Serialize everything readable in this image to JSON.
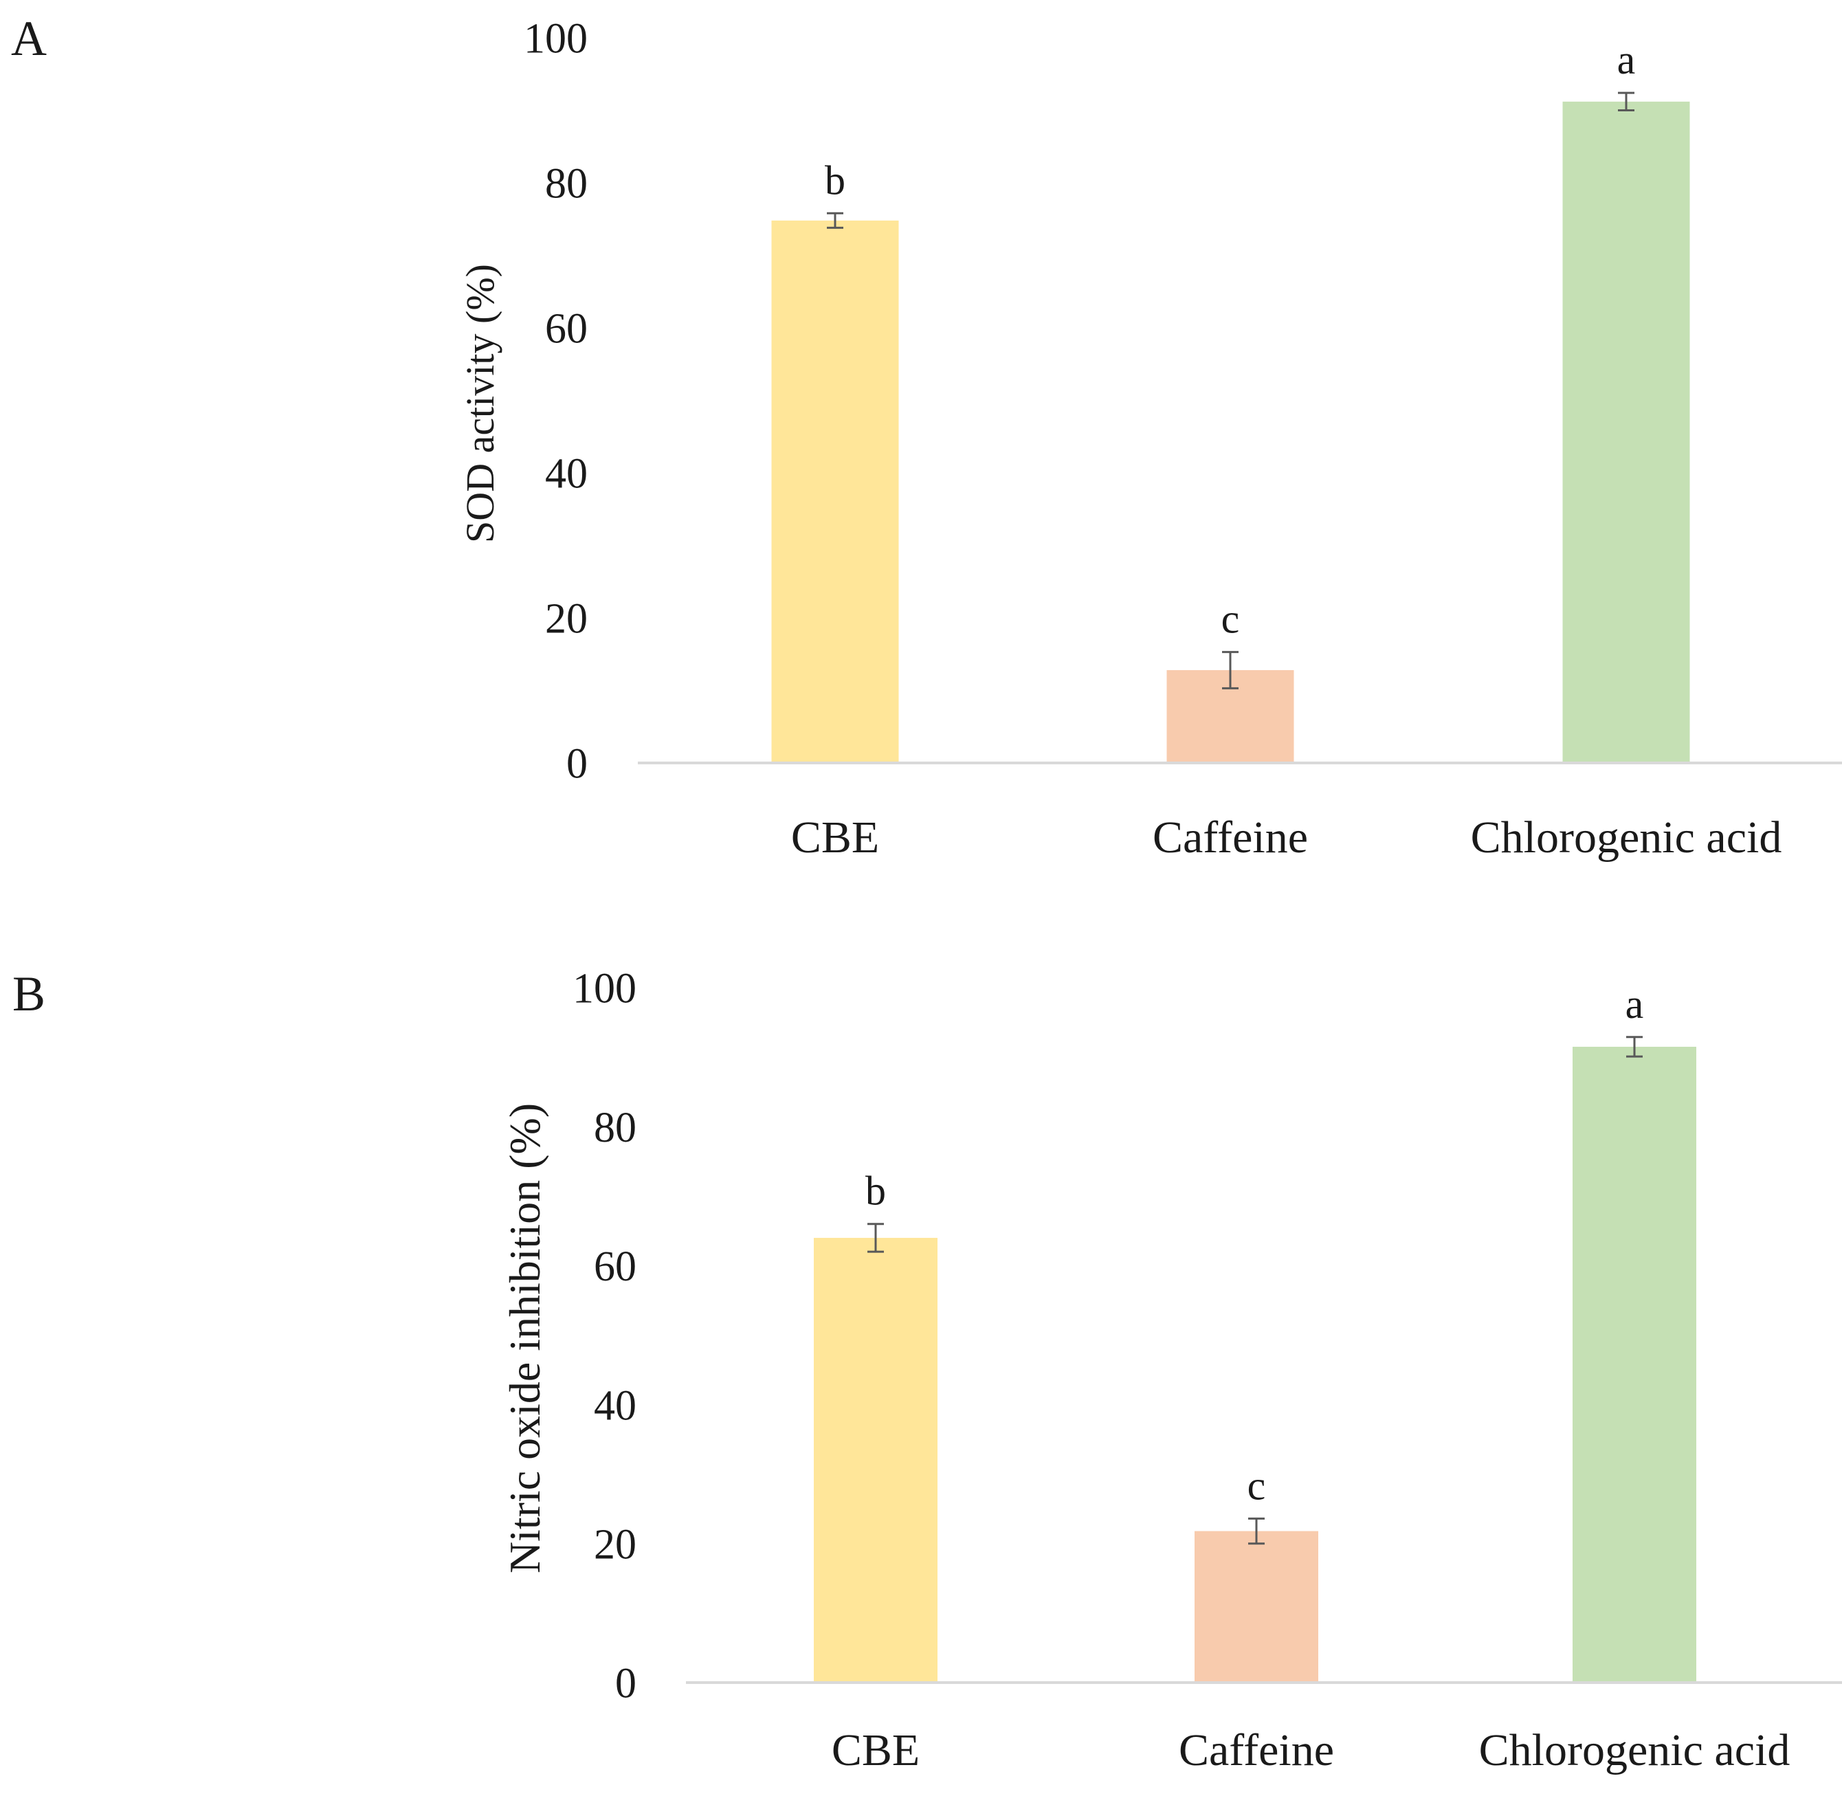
{
  "chart_data": [
    {
      "panel_label": "A",
      "type": "bar",
      "categories": [
        "CBE",
        "Caffeine",
        "Chlorogenic acid"
      ],
      "values": [
        74.8,
        12.8,
        91.2
      ],
      "errors": [
        1.0,
        2.5,
        1.2
      ],
      "significance_letters": [
        "b",
        "c",
        "a"
      ],
      "colors": [
        "#ffe699",
        "#f8cbad",
        "#c5e0b4"
      ],
      "xlabel": "",
      "ylabel": "SOD activity (%)",
      "ylim": [
        0,
        100
      ],
      "yticks": [
        0,
        20,
        40,
        60,
        80,
        100
      ],
      "grid": false,
      "legend": "none"
    },
    {
      "panel_label": "B",
      "type": "bar",
      "categories": [
        "CBE",
        "Caffeine",
        "Chlorogenic acid"
      ],
      "values": [
        64.0,
        21.8,
        91.5
      ],
      "errors": [
        2.0,
        1.8,
        1.4
      ],
      "significance_letters": [
        "b",
        "c",
        "a"
      ],
      "colors": [
        "#ffe699",
        "#f8cbad",
        "#c5e0b4"
      ],
      "xlabel": "",
      "ylabel": "Nitric oxide inhibition (%)",
      "ylim": [
        0,
        100
      ],
      "yticks": [
        0,
        20,
        40,
        60,
        80,
        100
      ],
      "grid": false,
      "legend": "none"
    }
  ]
}
